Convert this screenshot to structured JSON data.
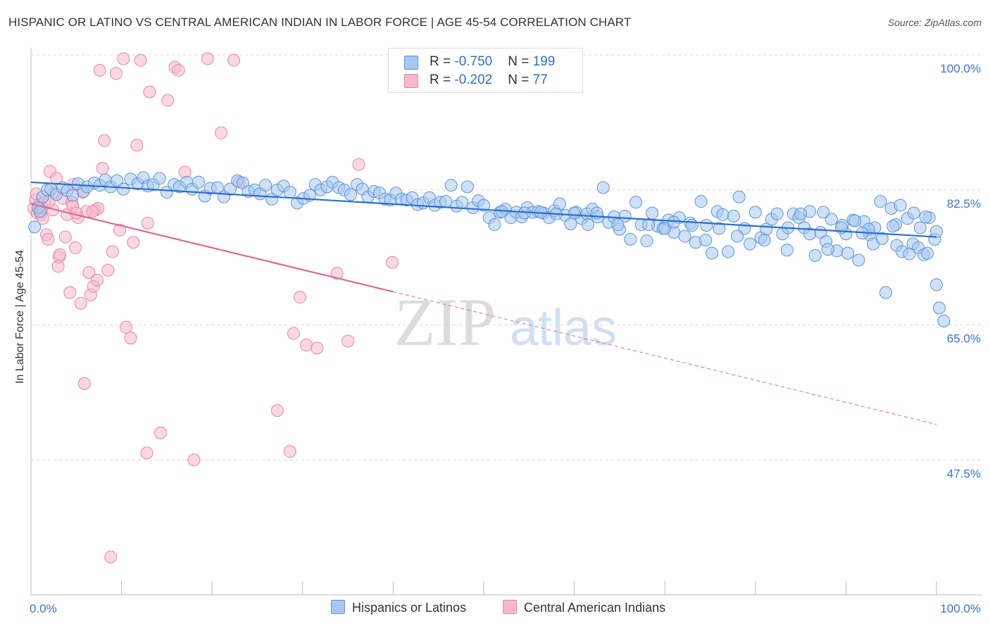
{
  "title": "HISPANIC OR LATINO VS CENTRAL AMERICAN INDIAN IN LABOR FORCE | AGE 45-54 CORRELATION CHART",
  "source": "Source: ZipAtlas.com",
  "watermark": {
    "zip": "ZIP",
    "atlas": "atlas"
  },
  "legend": {
    "rows": [
      {
        "r_label": "R = ",
        "r_value": "-0.750",
        "n_label": "N = ",
        "n_value": "199"
      },
      {
        "r_label": "R = ",
        "r_value": "-0.202",
        "n_label": "N = ",
        "n_value": "77"
      }
    ]
  },
  "bottom_legend": [
    "Hispanics or Latinos",
    "Central American Indians"
  ],
  "colors": {
    "blue_fill": "#a8c8f0",
    "blue_stroke": "#5b93dc",
    "blue_line": "#2a6fd4",
    "pink_fill": "#f7b8cc",
    "pink_stroke": "#e885a6",
    "pink_line": "#e06890",
    "tick_label": "#3a74d0",
    "grid": "#d9d9d9"
  },
  "chart_data": {
    "type": "scatter",
    "title": "HISPANIC OR LATINO VS CENTRAL AMERICAN INDIAN IN LABOR FORCE | AGE 45-54 CORRELATION CHART",
    "xlabel": "",
    "ylabel": "In Labor Force | Age 45-54",
    "xlim": [
      0,
      100
    ],
    "ylim": [
      30,
      100
    ],
    "x_tick_labels": [
      "0.0%",
      "100.0%"
    ],
    "y_ticks": [
      47.5,
      65.0,
      82.5,
      100.0
    ],
    "y_tick_labels": [
      "47.5%",
      "65.0%",
      "82.5%",
      "100.0%"
    ],
    "grid": true,
    "series": [
      {
        "name": "Hispanics or Latinos",
        "r": -0.75,
        "n": 199,
        "trend": {
          "x": [
            0,
            100
          ],
          "y": [
            83.5,
            76.4
          ]
        },
        "points": [
          [
            0.4,
            77.7
          ],
          [
            0.8,
            80.2
          ],
          [
            1.0,
            79.7
          ],
          [
            1.3,
            81.6
          ],
          [
            1.8,
            82.5
          ],
          [
            2.2,
            82.6
          ],
          [
            2.8,
            81.9
          ],
          [
            3.5,
            82.8
          ],
          [
            4.0,
            82.4
          ],
          [
            4.6,
            81.8
          ],
          [
            5.2,
            83.3
          ],
          [
            5.8,
            82.3
          ],
          [
            6.2,
            82.9
          ],
          [
            7.0,
            83.4
          ],
          [
            7.6,
            83.1
          ],
          [
            8.2,
            83.8
          ],
          [
            8.8,
            82.9
          ],
          [
            9.5,
            83.7
          ],
          [
            10.2,
            82.6
          ],
          [
            11.0,
            83.9
          ],
          [
            11.8,
            83.3
          ],
          [
            12.4,
            84.1
          ],
          [
            12.9,
            83.0
          ],
          [
            13.5,
            83.2
          ],
          [
            14.2,
            84.0
          ],
          [
            15.0,
            82.2
          ],
          [
            15.8,
            83.2
          ],
          [
            16.4,
            82.9
          ],
          [
            17.2,
            83.5
          ],
          [
            17.8,
            82.6
          ],
          [
            18.5,
            83.5
          ],
          [
            19.2,
            81.7
          ],
          [
            19.8,
            82.7
          ],
          [
            20.6,
            82.8
          ],
          [
            21.3,
            81.6
          ],
          [
            22.0,
            82.6
          ],
          [
            22.8,
            83.7
          ],
          [
            23.4,
            83.4
          ],
          [
            24.0,
            82.3
          ],
          [
            24.7,
            82.5
          ],
          [
            25.3,
            82.0
          ],
          [
            25.9,
            83.1
          ],
          [
            26.6,
            81.3
          ],
          [
            27.2,
            82.5
          ],
          [
            27.9,
            83.0
          ],
          [
            28.6,
            82.2
          ],
          [
            29.4,
            80.8
          ],
          [
            30.1,
            81.4
          ],
          [
            30.8,
            81.8
          ],
          [
            31.4,
            83.2
          ],
          [
            32.0,
            82.5
          ],
          [
            32.7,
            82.9
          ],
          [
            33.3,
            83.5
          ],
          [
            34.0,
            82.8
          ],
          [
            34.6,
            82.5
          ],
          [
            35.3,
            81.9
          ],
          [
            36.0,
            83.2
          ],
          [
            36.6,
            82.6
          ],
          [
            37.2,
            81.6
          ],
          [
            37.9,
            82.3
          ],
          [
            38.5,
            82.1
          ],
          [
            39.1,
            81.3
          ],
          [
            39.7,
            81.2
          ],
          [
            40.3,
            82.1
          ],
          [
            40.9,
            81.3
          ],
          [
            41.5,
            81.2
          ],
          [
            42.1,
            81.5
          ],
          [
            42.7,
            80.6
          ],
          [
            43.3,
            80.8
          ],
          [
            44.0,
            81.5
          ],
          [
            44.6,
            80.5
          ],
          [
            45.2,
            80.9
          ],
          [
            45.8,
            81.0
          ],
          [
            46.4,
            83.1
          ],
          [
            47.0,
            80.4
          ],
          [
            47.6,
            80.9
          ],
          [
            48.2,
            82.9
          ],
          [
            48.8,
            80.2
          ],
          [
            49.4,
            81.1
          ],
          [
            50.0,
            80.5
          ],
          [
            50.6,
            78.9
          ],
          [
            51.2,
            78.0
          ],
          [
            51.8,
            79.6
          ],
          [
            52.4,
            80.0
          ],
          [
            53.0,
            78.9
          ],
          [
            53.6,
            79.6
          ],
          [
            54.2,
            79.0
          ],
          [
            54.8,
            80.2
          ],
          [
            55.4,
            79.6
          ],
          [
            56.0,
            79.7
          ],
          [
            56.6,
            79.5
          ],
          [
            57.2,
            78.9
          ],
          [
            57.8,
            79.8
          ],
          [
            58.4,
            80.7
          ],
          [
            59.0,
            79.2
          ],
          [
            59.6,
            78.1
          ],
          [
            60.2,
            79.6
          ],
          [
            60.8,
            78.8
          ],
          [
            61.4,
            79.4
          ],
          [
            62.0,
            80.0
          ],
          [
            62.6,
            79.0
          ],
          [
            63.2,
            82.8
          ],
          [
            63.8,
            78.3
          ],
          [
            64.4,
            79.0
          ],
          [
            65.0,
            77.4
          ],
          [
            65.6,
            79.1
          ],
          [
            66.2,
            76.1
          ],
          [
            66.8,
            80.9
          ],
          [
            67.4,
            78.0
          ],
          [
            68.0,
            75.9
          ],
          [
            68.6,
            79.5
          ],
          [
            69.2,
            77.8
          ],
          [
            69.8,
            77.5
          ],
          [
            70.4,
            78.6
          ],
          [
            71.0,
            77.0
          ],
          [
            71.6,
            78.9
          ],
          [
            72.2,
            76.5
          ],
          [
            72.8,
            78.2
          ],
          [
            73.4,
            75.7
          ],
          [
            74.0,
            81.0
          ],
          [
            74.6,
            77.9
          ],
          [
            75.2,
            74.3
          ],
          [
            75.8,
            79.7
          ],
          [
            76.4,
            79.3
          ],
          [
            77.0,
            74.5
          ],
          [
            77.6,
            79.1
          ],
          [
            78.2,
            81.6
          ],
          [
            78.8,
            77.5
          ],
          [
            79.4,
            75.5
          ],
          [
            80.0,
            79.6
          ],
          [
            80.6,
            76.3
          ],
          [
            81.2,
            77.4
          ],
          [
            81.8,
            78.7
          ],
          [
            82.4,
            79.4
          ],
          [
            83.0,
            76.8
          ],
          [
            83.6,
            77.6
          ],
          [
            84.2,
            79.4
          ],
          [
            84.8,
            78.9
          ],
          [
            85.4,
            77.6
          ],
          [
            86.0,
            79.7
          ],
          [
            86.6,
            74.0
          ],
          [
            87.2,
            77.0
          ],
          [
            87.8,
            75.8
          ],
          [
            88.4,
            78.7
          ],
          [
            89.0,
            74.6
          ],
          [
            89.6,
            77.9
          ],
          [
            90.2,
            74.3
          ],
          [
            90.8,
            78.6
          ],
          [
            91.4,
            73.4
          ],
          [
            92.0,
            78.4
          ],
          [
            92.6,
            76.7
          ],
          [
            93.2,
            77.6
          ],
          [
            93.8,
            81.0
          ],
          [
            94.4,
            69.2
          ],
          [
            95.0,
            80.1
          ],
          [
            95.6,
            75.3
          ],
          [
            96.2,
            74.5
          ],
          [
            96.8,
            78.8
          ],
          [
            97.4,
            75.5
          ],
          [
            98.0,
            75.0
          ],
          [
            98.6,
            74.1
          ],
          [
            99.2,
            78.9
          ],
          [
            99.8,
            76.1
          ],
          [
            100.0,
            77.1
          ],
          [
            68.2,
            78.0
          ],
          [
            64.8,
            78.0
          ],
          [
            73.0,
            77.9
          ],
          [
            76.0,
            77.5
          ],
          [
            85.0,
            79.4
          ],
          [
            87.5,
            79.6
          ],
          [
            90.0,
            76.8
          ],
          [
            92.5,
            77.4
          ],
          [
            95.5,
            78.0
          ],
          [
            97.0,
            74.2
          ],
          [
            98.8,
            79.0
          ],
          [
            52.0,
            79.7
          ],
          [
            56.3,
            79.6
          ],
          [
            58.0,
            79.4
          ],
          [
            60.0,
            79.5
          ],
          [
            62.5,
            79.5
          ],
          [
            61.5,
            78.0
          ],
          [
            54.5,
            79.5
          ],
          [
            70.0,
            77.5
          ],
          [
            71.0,
            78.3
          ],
          [
            74.5,
            76.0
          ],
          [
            78.0,
            76.5
          ],
          [
            81.0,
            76.0
          ],
          [
            83.5,
            74.7
          ],
          [
            86.0,
            76.8
          ],
          [
            88.0,
            74.8
          ],
          [
            89.5,
            77.6
          ],
          [
            91.0,
            78.5
          ],
          [
            93.0,
            75.5
          ],
          [
            94.0,
            76.2
          ],
          [
            96.0,
            80.5
          ],
          [
            97.5,
            79.5
          ],
          [
            99.0,
            74.3
          ],
          [
            100.0,
            70.2
          ],
          [
            100.3,
            67.2
          ],
          [
            100.8,
            65.5
          ],
          [
            98.2,
            77.6
          ],
          [
            95.2,
            77.8
          ],
          [
            91.8,
            76.9
          ]
        ]
      },
      {
        "name": "Central American Indians",
        "r": -0.202,
        "n": 77,
        "trend": {
          "x": [
            0,
            40
          ],
          "y": [
            80.7,
            69.3
          ]
        },
        "trend_dashed": {
          "x": [
            40,
            100
          ],
          "y": [
            69.3,
            52.1
          ]
        },
        "points": [
          [
            0.3,
            80.1
          ],
          [
            0.5,
            81.2
          ],
          [
            0.7,
            79.5
          ],
          [
            0.9,
            80.6
          ],
          [
            1.1,
            79.3
          ],
          [
            1.3,
            78.8
          ],
          [
            1.5,
            80.9
          ],
          [
            1.7,
            76.7
          ],
          [
            1.9,
            76.1
          ],
          [
            2.1,
            84.9
          ],
          [
            2.4,
            79.9
          ],
          [
            2.6,
            82.1
          ],
          [
            2.8,
            84.0
          ],
          [
            3.0,
            72.6
          ],
          [
            3.1,
            73.8
          ],
          [
            3.2,
            74.1
          ],
          [
            3.5,
            81.4
          ],
          [
            3.8,
            76.4
          ],
          [
            4.0,
            79.3
          ],
          [
            4.3,
            69.2
          ],
          [
            4.5,
            80.9
          ],
          [
            4.7,
            83.2
          ],
          [
            4.9,
            75.0
          ],
          [
            5.2,
            78.9
          ],
          [
            5.5,
            67.8
          ],
          [
            5.7,
            82.2
          ],
          [
            5.9,
            57.4
          ],
          [
            6.1,
            79.7
          ],
          [
            6.4,
            71.8
          ],
          [
            6.6,
            68.9
          ],
          [
            6.9,
            70.0
          ],
          [
            7.1,
            79.9
          ],
          [
            7.3,
            70.8
          ],
          [
            7.6,
            98.0
          ],
          [
            7.9,
            85.3
          ],
          [
            8.1,
            88.9
          ],
          [
            8.5,
            72.1
          ],
          [
            8.8,
            34.9
          ],
          [
            9.4,
            97.6
          ],
          [
            9.8,
            77.3
          ],
          [
            10.2,
            99.5
          ],
          [
            10.5,
            64.7
          ],
          [
            11.0,
            63.3
          ],
          [
            11.3,
            75.7
          ],
          [
            11.7,
            88.3
          ],
          [
            12.1,
            99.3
          ],
          [
            12.8,
            48.4
          ],
          [
            13.1,
            95.2
          ],
          [
            14.3,
            51.0
          ],
          [
            15.1,
            94.1
          ],
          [
            15.9,
            98.4
          ],
          [
            16.3,
            98.0
          ],
          [
            17.0,
            84.8
          ],
          [
            18.0,
            47.5
          ],
          [
            19.5,
            99.5
          ],
          [
            21.0,
            89.9
          ],
          [
            22.4,
            99.3
          ],
          [
            23.0,
            83.5
          ],
          [
            27.2,
            53.9
          ],
          [
            28.6,
            48.6
          ],
          [
            29.0,
            63.9
          ],
          [
            29.7,
            68.6
          ],
          [
            30.4,
            62.4
          ],
          [
            31.6,
            62.0
          ],
          [
            33.8,
            71.7
          ],
          [
            35.0,
            62.9
          ],
          [
            36.2,
            85.8
          ],
          [
            39.9,
            73.1
          ],
          [
            7.4,
            80.1
          ],
          [
            1.2,
            80.2
          ],
          [
            0.6,
            82.0
          ],
          [
            2.0,
            81.0
          ],
          [
            4.6,
            80.4
          ],
          [
            5.0,
            79.5
          ],
          [
            6.8,
            79.7
          ],
          [
            12.9,
            78.2
          ],
          [
            9.0,
            74.5
          ]
        ]
      }
    ]
  }
}
